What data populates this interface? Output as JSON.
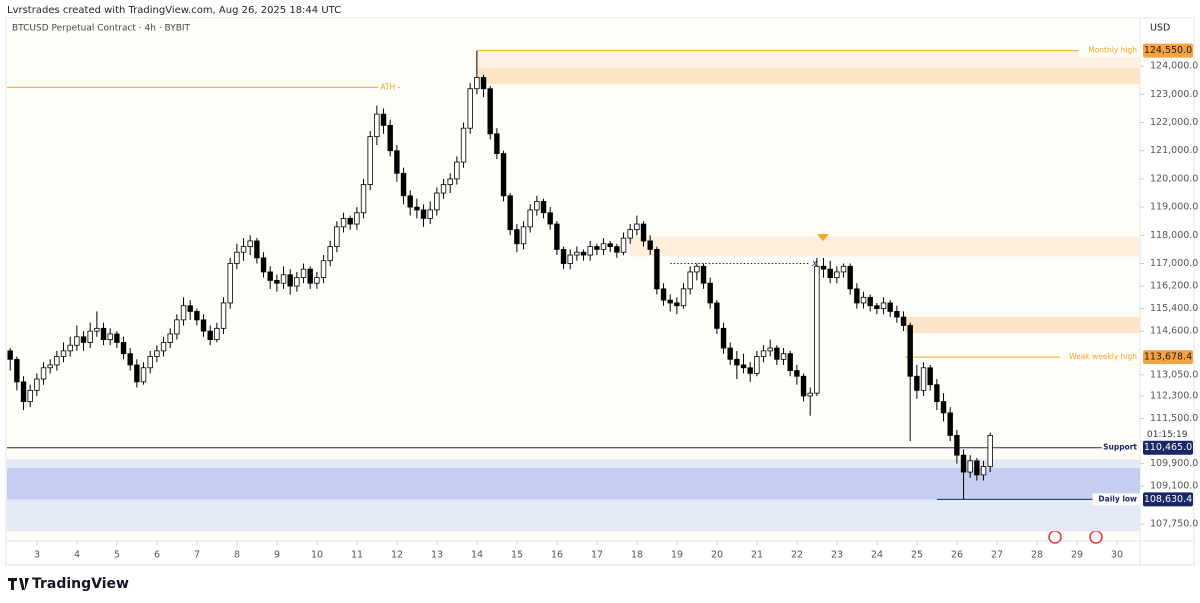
{
  "header": "Lvrstrades created with TradingView.com, Aug 26, 2025 18:44 UTC",
  "footer": "TradingView",
  "chart_data": {
    "type": "candlestick",
    "title": "BTCUSD Perpetual Contract · 4h · BYBIT",
    "y_axis_label": "USD",
    "countdown": "01:15:19",
    "xlim": [
      2.25,
      30.575
    ],
    "ylim": [
      107190,
      125000
    ],
    "xticks": [
      3,
      4,
      5,
      6,
      7,
      8,
      9,
      10,
      11,
      12,
      13,
      14,
      15,
      16,
      17,
      18,
      19,
      20,
      21,
      22,
      23,
      24,
      25,
      26,
      27,
      28,
      29,
      30
    ],
    "yticks": [
      {
        "value": 124000,
        "label": "124,000.0"
      },
      {
        "value": 123000,
        "label": "123,000.0"
      },
      {
        "value": 122000,
        "label": "122,000.0"
      },
      {
        "value": 121000,
        "label": "121,000.0"
      },
      {
        "value": 120000,
        "label": "120,000.0"
      },
      {
        "value": 119000,
        "label": "119,000.0"
      },
      {
        "value": 118000,
        "label": "118,000.0"
      },
      {
        "value": 117000,
        "label": "117,000.0"
      },
      {
        "value": 116200,
        "label": "116,200.0"
      },
      {
        "value": 115400,
        "label": "115,400.0"
      },
      {
        "value": 114600,
        "label": "114,600.0"
      },
      {
        "value": 113050,
        "label": "113,050.0"
      },
      {
        "value": 112300,
        "label": "112,300.0"
      },
      {
        "value": 111500,
        "label": "111,500.0"
      },
      {
        "value": 109900,
        "label": "109,900.0"
      },
      {
        "value": 109100,
        "label": "109,100.0"
      },
      {
        "value": 107750,
        "label": "107,750.0"
      }
    ],
    "x_start": 2.33,
    "up_color": "#ffffff",
    "down_color": "#000000",
    "ohlc": [
      [
        113900,
        114000,
        113200,
        113600
      ],
      [
        113600,
        113700,
        112500,
        112800
      ],
      [
        112800,
        113000,
        111800,
        112100
      ],
      [
        112100,
        112700,
        111900,
        112500
      ],
      [
        112500,
        113100,
        112300,
        112900
      ],
      [
        112900,
        113500,
        112700,
        113300
      ],
      [
        113300,
        113600,
        113100,
        113400
      ],
      [
        113400,
        113900,
        113200,
        113700
      ],
      [
        113700,
        114200,
        113500,
        113900
      ],
      [
        113900,
        114400,
        113700,
        114100
      ],
      [
        114100,
        114800,
        113900,
        114400
      ],
      [
        114400,
        114600,
        113900,
        114200
      ],
      [
        114200,
        114900,
        114000,
        114600
      ],
      [
        114600,
        115300,
        114400,
        114700
      ],
      [
        114700,
        114900,
        114100,
        114300
      ],
      [
        114300,
        114700,
        114100,
        114500
      ],
      [
        114500,
        114600,
        114000,
        114200
      ],
      [
        114200,
        114400,
        113600,
        113800
      ],
      [
        113800,
        114000,
        113200,
        113400
      ],
      [
        113400,
        113600,
        112600,
        112800
      ],
      [
        112800,
        113500,
        112700,
        113300
      ],
      [
        113300,
        113900,
        113100,
        113700
      ],
      [
        113700,
        114100,
        113500,
        113900
      ],
      [
        113900,
        114400,
        113700,
        114200
      ],
      [
        114200,
        114700,
        114000,
        114500
      ],
      [
        114500,
        115200,
        114300,
        115000
      ],
      [
        115000,
        115800,
        114800,
        115500
      ],
      [
        115500,
        115700,
        115000,
        115300
      ],
      [
        115300,
        115400,
        114800,
        115000
      ],
      [
        115000,
        115200,
        114400,
        114600
      ],
      [
        114600,
        114800,
        114100,
        114300
      ],
      [
        114300,
        114900,
        114200,
        114700
      ],
      [
        114700,
        115800,
        114500,
        115600
      ],
      [
        115600,
        117200,
        115400,
        117000
      ],
      [
        117000,
        117700,
        116800,
        117400
      ],
      [
        117400,
        117900,
        117100,
        117600
      ],
      [
        117600,
        118000,
        117300,
        117800
      ],
      [
        117800,
        117900,
        117000,
        117200
      ],
      [
        117200,
        117400,
        116500,
        116700
      ],
      [
        116700,
        116900,
        116100,
        116400
      ],
      [
        116400,
        116600,
        116000,
        116300
      ],
      [
        116300,
        116900,
        116100,
        116600
      ],
      [
        116600,
        116800,
        115900,
        116200
      ],
      [
        116200,
        116700,
        116000,
        116500
      ],
      [
        116500,
        117000,
        116300,
        116800
      ],
      [
        116800,
        116900,
        116100,
        116300
      ],
      [
        116300,
        116700,
        116100,
        116500
      ],
      [
        116500,
        117300,
        116300,
        117100
      ],
      [
        117100,
        117800,
        116900,
        117600
      ],
      [
        117600,
        118500,
        117400,
        118300
      ],
      [
        118300,
        118800,
        118100,
        118600
      ],
      [
        118600,
        118700,
        118200,
        118400
      ],
      [
        118400,
        119000,
        118200,
        118800
      ],
      [
        118800,
        120000,
        118600,
        119800
      ],
      [
        119800,
        121700,
        119600,
        121500
      ],
      [
        121500,
        122600,
        121200,
        122300
      ],
      [
        122300,
        122500,
        121600,
        121900
      ],
      [
        121900,
        122100,
        120800,
        121000
      ],
      [
        121000,
        121200,
        119900,
        120200
      ],
      [
        120200,
        120400,
        119100,
        119400
      ],
      [
        119400,
        119600,
        118700,
        119000
      ],
      [
        119000,
        119300,
        118600,
        118900
      ],
      [
        118900,
        119100,
        118300,
        118600
      ],
      [
        118600,
        119200,
        118400,
        118900
      ],
      [
        118900,
        119700,
        118700,
        119500
      ],
      [
        119500,
        120000,
        119300,
        119800
      ],
      [
        119800,
        120200,
        119500,
        120000
      ],
      [
        120000,
        120800,
        119800,
        120600
      ],
      [
        120600,
        122000,
        120400,
        121800
      ],
      [
        121800,
        123400,
        121600,
        123200
      ],
      [
        123200,
        124550,
        123000,
        123600
      ],
      [
        123600,
        123700,
        122900,
        123200
      ],
      [
        123200,
        123300,
        121400,
        121600
      ],
      [
        121600,
        121800,
        120700,
        120900
      ],
      [
        120900,
        121000,
        119200,
        119400
      ],
      [
        119400,
        119500,
        118000,
        118200
      ],
      [
        118200,
        118400,
        117400,
        117700
      ],
      [
        117700,
        118500,
        117500,
        118300
      ],
      [
        118300,
        119100,
        118100,
        118900
      ],
      [
        118900,
        119400,
        118700,
        119200
      ],
      [
        119200,
        119300,
        118600,
        118800
      ],
      [
        118800,
        119000,
        118200,
        118400
      ],
      [
        118400,
        118500,
        117300,
        117500
      ],
      [
        117500,
        117600,
        116800,
        117000
      ],
      [
        117000,
        117500,
        116800,
        117300
      ],
      [
        117300,
        117600,
        117100,
        117400
      ],
      [
        117400,
        117500,
        117100,
        117300
      ],
      [
        117300,
        117800,
        117100,
        117600
      ],
      [
        117600,
        117700,
        117300,
        117500
      ],
      [
        117500,
        117900,
        117300,
        117700
      ],
      [
        117700,
        117800,
        117400,
        117600
      ],
      [
        117600,
        117700,
        117200,
        117400
      ],
      [
        117400,
        118100,
        117300,
        117900
      ],
      [
        117900,
        118400,
        117700,
        118200
      ],
      [
        118200,
        118700,
        118000,
        118400
      ],
      [
        118400,
        118500,
        117600,
        117800
      ],
      [
        117800,
        118000,
        117300,
        117500
      ],
      [
        117500,
        117600,
        115900,
        116100
      ],
      [
        116100,
        116300,
        115500,
        115700
      ],
      [
        115700,
        115900,
        115300,
        115600
      ],
      [
        115600,
        115800,
        115200,
        115500
      ],
      [
        115500,
        116300,
        115400,
        116100
      ],
      [
        116100,
        116900,
        115900,
        116700
      ],
      [
        116700,
        117000,
        116400,
        116900
      ],
      [
        116900,
        117000,
        116100,
        116300
      ],
      [
        116300,
        116500,
        115400,
        115600
      ],
      [
        115600,
        115700,
        114500,
        114700
      ],
      [
        114700,
        114900,
        113800,
        114000
      ],
      [
        114000,
        114200,
        113400,
        113600
      ],
      [
        113600,
        113900,
        112900,
        113400
      ],
      [
        113400,
        113800,
        113100,
        113300
      ],
      [
        113300,
        113500,
        112800,
        113100
      ],
      [
        113100,
        113900,
        113000,
        113700
      ],
      [
        113700,
        114100,
        113500,
        113900
      ],
      [
        113900,
        114300,
        113700,
        114000
      ],
      [
        114000,
        114100,
        113400,
        113600
      ],
      [
        113600,
        114000,
        113400,
        113800
      ],
      [
        113800,
        113900,
        113000,
        113200
      ],
      [
        113200,
        113400,
        112700,
        113000
      ],
      [
        113000,
        113100,
        112100,
        112300
      ],
      [
        112300,
        112600,
        111600,
        112400
      ],
      [
        112400,
        117200,
        112300,
        116900
      ],
      [
        116900,
        117200,
        116500,
        116800
      ],
      [
        116800,
        117100,
        116300,
        116500
      ],
      [
        116500,
        116900,
        116300,
        116700
      ],
      [
        116700,
        117000,
        116500,
        116900
      ],
      [
        116900,
        117000,
        115900,
        116100
      ],
      [
        116100,
        116300,
        115400,
        115600
      ],
      [
        115600,
        116000,
        115400,
        115800
      ],
      [
        115800,
        115900,
        115300,
        115500
      ],
      [
        115500,
        115600,
        115200,
        115400
      ],
      [
        115400,
        115800,
        115200,
        115600
      ],
      [
        115600,
        115700,
        115100,
        115300
      ],
      [
        115300,
        115500,
        114900,
        115100
      ],
      [
        115100,
        115300,
        114600,
        114800
      ],
      [
        114800,
        114900,
        110700,
        113000
      ],
      [
        113000,
        113400,
        112200,
        112500
      ],
      [
        112500,
        113500,
        112300,
        113300
      ],
      [
        113300,
        113400,
        112500,
        112700
      ],
      [
        112700,
        112900,
        111800,
        112100
      ],
      [
        112100,
        112400,
        111400,
        111700
      ],
      [
        111700,
        111900,
        110700,
        110900
      ],
      [
        110900,
        111100,
        109900,
        110200
      ],
      [
        110200,
        110400,
        108630,
        109600
      ],
      [
        109600,
        110200,
        109400,
        110000
      ],
      [
        110000,
        110100,
        109300,
        109500
      ],
      [
        109500,
        110000,
        109300,
        109800
      ],
      [
        109800,
        111000,
        109600,
        110900
      ]
    ],
    "zones": [
      {
        "from": 123360,
        "to": 124550,
        "x_start": 14.0,
        "color": "#fdf1e3"
      },
      {
        "from": 123360,
        "to": 123930,
        "x_start": 14.0,
        "color": "#fde3c7"
      },
      {
        "from": 117250,
        "to": 117950,
        "x_start": 17.83,
        "color": "#fdeedd"
      },
      {
        "from": 114530,
        "to": 115100,
        "x_start": 24.7,
        "color": "#fde3c7"
      },
      {
        "from": 107500,
        "to": 110050,
        "x_start": 2.25,
        "color": "#e4e9f8"
      },
      {
        "from": 108630,
        "to": 109750,
        "x_start": 2.25,
        "color": "#c3cef0"
      }
    ],
    "levels": [
      {
        "name": "ATH",
        "value": 123250,
        "x_start": 2.25,
        "x_end": 12.08,
        "color": "#f5a623"
      },
      {
        "name": "Monthly high",
        "value": 124550,
        "label": "124,550.0",
        "x_start": 14.0,
        "color": "#f5a623"
      },
      {
        "name": "Weak weekly high",
        "value": 113678.4,
        "label": "113,678.4",
        "x_start": 24.7,
        "color": "#f5a623"
      },
      {
        "name": "Support",
        "value": 110465,
        "label": "110,465.0",
        "x_start": 2.25,
        "color": "#1a2766"
      },
      {
        "name": "Daily low",
        "value": 108630.4,
        "label": "108,630.4",
        "x_start": 25.5,
        "color": "#1a2766"
      }
    ],
    "dotted": {
      "value": 117000,
      "x_start": 18.83,
      "x_end": 22.3,
      "marker": "x"
    },
    "triangle": {
      "value": 117900,
      "x": 22.65,
      "color": "#f5a623"
    }
  }
}
